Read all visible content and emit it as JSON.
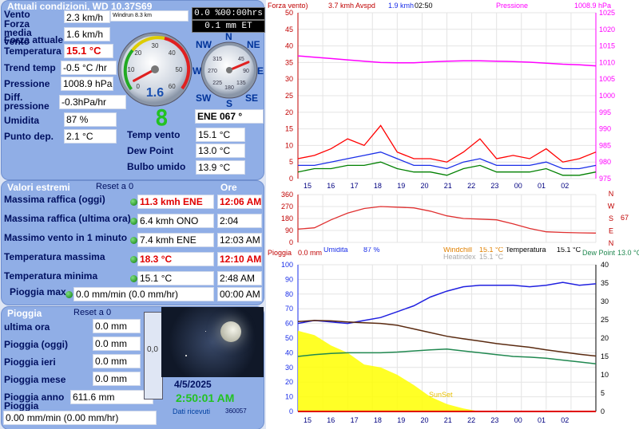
{
  "conditions": {
    "title": "Attuali condizioni, WD 10.37S69",
    "wind_label": "Vento",
    "wind_value": "2.3 km/h",
    "windrun": "Windrun 8.3 km",
    "avg_wind_label": "Forza media vento",
    "avg_wind_value": "1.6 km/h",
    "current_label": "Forza attuale",
    "temp_label": "Temperatura",
    "temp_value": "15.1 °C",
    "trend_label": "Trend temp",
    "trend_value": "-0.5 °C /hr",
    "pressure_label": "Pressione",
    "pressure_value": "1008.9 hPa",
    "diff_label": "Diff. pressione",
    "diff_value": "-0.3hPa/hr",
    "humidity_label": "Umidita",
    "humidity_value": "87 %",
    "dew_label": "Punto dep.",
    "dew_value": "2.1 °C",
    "clock_box": "0.0 %00:00hrs",
    "rain_et_box": "0.1 mm ET",
    "windchill_label": "Temp vento",
    "windchill_value": "15.1 °C",
    "dewpoint_label": "Dew Point",
    "dewpoint_value": "13.0 °C",
    "wetbulb_label": "Bulbo umido",
    "wetbulb_value": "13.9 °C",
    "wind_dir_value": "ENE  067 °",
    "uv_digit": "8",
    "speed_gauge": {
      "reading": "1.6",
      "max": 60,
      "needle": 3.7,
      "ticks": [
        "0",
        "10",
        "20",
        "30",
        "40",
        "50",
        "60"
      ]
    },
    "compass": {
      "N": "N",
      "NE": "NE",
      "E": "E",
      "SE": "SE",
      "S": "S",
      "SW": "SW",
      "W": "W",
      "NW": "NW",
      "ticks": [
        "45",
        "90",
        "135",
        "180",
        "225",
        "270",
        "315"
      ],
      "heading": 67
    }
  },
  "extremes": {
    "title": "Valori estremi",
    "reset": "Reset a 0",
    "ore": "Ore",
    "rows": [
      {
        "label": "Massima raffica (oggi)",
        "value": "11.3 kmh ENE",
        "time": "12:06 AM",
        "hot": true
      },
      {
        "label": "Massima raffica (ultima ora)",
        "value": "6.4 kmh ONO",
        "time": "2:04",
        "hot": false
      },
      {
        "label": "Massimo vento in 1 minuto",
        "value": "7.4 kmh ENE",
        "time": "12:03 AM",
        "hot": false
      },
      {
        "label": "Temperatura massima",
        "value": "18.3 °C",
        "time": "12:10 AM",
        "hot": true
      },
      {
        "label": "Temperatura minima",
        "value": "15.1 °C",
        "time": "2:48 AM",
        "hot": false
      },
      {
        "label": "Pioggia max",
        "value": "0.0 mm/min (0.0 mm/hr)",
        "time": "00:00 AM",
        "hot": false
      }
    ]
  },
  "rain": {
    "title": "Pioggia",
    "reset": "Reset a 0",
    "hour_label": "ultima ora",
    "hour_value": "0.0 mm",
    "today_label": "Pioggia (oggi)",
    "today_value": "0.0 mm",
    "yesterday_label": "Pioggia ieri",
    "yesterday_value": "0.0 mm",
    "month_label": "Pioggia mese",
    "month_value": "0.0 mm",
    "year_label": "Pioggia anno",
    "year_value": "611.6 mm",
    "rate_label": "Pioggia",
    "rate_value": "0.00 mm/min (0.00 mm/hr)",
    "gauge_value": "0,0"
  },
  "status": {
    "date": "4/5/2025",
    "time": "2:50:01 AM",
    "data_label": "Dati ricevuti",
    "data_count": "360057"
  },
  "colors": {
    "panel": "#90aee6",
    "label": "#001060",
    "accent_red": "#e00000",
    "time_green": "#22c222"
  },
  "chart_data": [
    {
      "type": "line",
      "header": {
        "left": "Forza vento)",
        "avg": "3.7 kmh Avspd",
        "gust": "1.9 kmh",
        "time": "02:50",
        "pressure_label": "Pressione",
        "pressure_value": "1008.9 hPa"
      },
      "x_ticks": [
        "15",
        "16",
        "17",
        "18",
        "19",
        "20",
        "21",
        "22",
        "23",
        "00",
        "01",
        "02"
      ],
      "y_left_ticks": [
        "0",
        "5",
        "10",
        "15",
        "20",
        "25",
        "30",
        "35",
        "40",
        "45",
        "50"
      ],
      "y_right_ticks": [
        "975",
        "980",
        "985",
        "990",
        "995",
        "1000",
        "1005",
        "1010",
        "1015",
        "1020",
        "1025"
      ],
      "ylim_left": [
        0,
        50
      ],
      "ylim_right": [
        975,
        1025
      ],
      "series": [
        {
          "name": "Pressione",
          "axis": "right",
          "color": "#ff00ff",
          "values": [
            1012.0,
            1011.6,
            1011.2,
            1010.8,
            1010.4,
            1010.0,
            1009.9,
            1009.9,
            1010.2,
            1010.4,
            1010.5,
            1010.5,
            1010.4,
            1010.3,
            1010.1,
            1009.8,
            1009.5,
            1009.3,
            1009.0
          ]
        },
        {
          "color": "#ff0000",
          "values": [
            6,
            7,
            9,
            12,
            10,
            16,
            8,
            6,
            6,
            5,
            8,
            12,
            6,
            7,
            6,
            9,
            5,
            6,
            8
          ]
        },
        {
          "color": "#1a2ee8",
          "values": [
            4,
            4,
            5,
            6,
            7,
            8,
            6,
            4,
            4,
            3,
            5,
            6,
            4,
            4,
            4,
            5,
            3,
            3,
            4
          ]
        },
        {
          "color": "#008000",
          "values": [
            2,
            3,
            3,
            4,
            4,
            5,
            3,
            2,
            2,
            1,
            3,
            4,
            2,
            2,
            2,
            3,
            1,
            1,
            2
          ]
        }
      ]
    },
    {
      "type": "line",
      "y_left_ticks": [
        "0",
        "90",
        "180",
        "270",
        "360"
      ],
      "ylim": [
        0,
        360
      ],
      "dir_labels": [
        "N",
        "W",
        "S",
        "E",
        "N"
      ],
      "current_value": "67",
      "series": [
        {
          "color": "#e03030",
          "values": [
            100,
            110,
            170,
            220,
            255,
            270,
            265,
            260,
            235,
            200,
            180,
            175,
            170,
            140,
            105,
            80,
            75,
            72,
            70
          ]
        }
      ]
    },
    {
      "type": "line",
      "header": {
        "rain_label": "Pioggia",
        "rain_value": "0.0 mm",
        "hum_label": "Umidita",
        "hum_value": "87 %",
        "windchill_label": "Windchill",
        "windchill_value": "15.1 °C",
        "heatindex_label": "Heatindex",
        "heatindex_value": "15.1 °C",
        "temp_label": "Temperatura",
        "temp_value": "15.1 °C",
        "dew_label": "Dew Point",
        "dew_value": "13.0 °C"
      },
      "x_ticks": [
        "15",
        "16",
        "17",
        "18",
        "19",
        "20",
        "21",
        "22",
        "23",
        "00",
        "01",
        "02"
      ],
      "y_left_ticks": [
        "0",
        "10",
        "20",
        "30",
        "40",
        "50",
        "60",
        "70",
        "80",
        "90",
        "100"
      ],
      "y_right_ticks": [
        "0",
        "5",
        "10",
        "15",
        "20",
        "25",
        "30",
        "35",
        "40"
      ],
      "ylim_left": [
        0,
        100
      ],
      "ylim_right": [
        0,
        40
      ],
      "sun_label": "SunSet",
      "series": [
        {
          "name": "Umidita",
          "color": "#2020e0",
          "axis": "left",
          "values": [
            60,
            62,
            61,
            60,
            62,
            64,
            68,
            72,
            78,
            82,
            85,
            86,
            86,
            86,
            85,
            86,
            88,
            86,
            87
          ]
        },
        {
          "name": "Temperatura",
          "color": "#5a2a10",
          "axis": "right",
          "values": [
            24.5,
            24.8,
            24.7,
            24.4,
            24.2,
            24.0,
            23.5,
            22.5,
            21.5,
            20.5,
            19.8,
            19.2,
            18.5,
            18.0,
            17.5,
            16.8,
            16.2,
            15.6,
            15.1
          ]
        },
        {
          "name": "Dew Point",
          "color": "#208850",
          "axis": "right",
          "values": [
            15.0,
            15.5,
            15.8,
            16.0,
            16.0,
            16.0,
            16.2,
            16.5,
            16.8,
            17.0,
            16.5,
            16.0,
            15.5,
            15.0,
            14.8,
            14.5,
            14.0,
            13.5,
            13.0
          ]
        },
        {
          "name": "Solar",
          "color": "#ffff00",
          "axis": "left",
          "fill": true,
          "values": [
            55,
            52,
            45,
            40,
            32,
            30,
            25,
            18,
            10,
            5,
            2,
            0,
            0,
            0,
            0,
            0,
            0,
            0,
            0
          ]
        }
      ]
    }
  ]
}
